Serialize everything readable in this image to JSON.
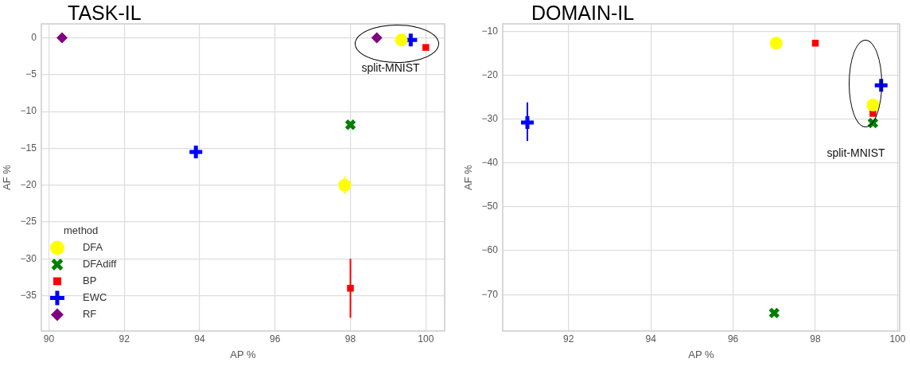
{
  "chart_data": [
    {
      "type": "scatter",
      "title": "TASK-IL",
      "xlabel": "AP %",
      "ylabel": "AF %",
      "legend_title": "method",
      "legend": "bottom left",
      "grid": true,
      "xlim": [
        89.8,
        100.5
      ],
      "xticks": [
        90,
        92,
        94,
        96,
        98,
        100
      ],
      "ylim": [
        -39.8,
        1.9
      ],
      "yticks": [
        0,
        -5,
        -10,
        -15,
        -20,
        -25,
        -30,
        -35
      ],
      "annotations": [
        "split-MNIST"
      ],
      "series": [
        {
          "name": "DFA",
          "color": "#ffff00",
          "marker": "circle",
          "x": [
            97.85,
            99.35
          ],
          "values": [
            -20,
            -0.3
          ],
          "errors": [
            1.2,
            null
          ]
        },
        {
          "name": "DFAdiff",
          "color": "#008000",
          "marker": "cross",
          "x": [
            98
          ],
          "values": [
            -11.8
          ]
        },
        {
          "name": "BP",
          "color": "#ff0000",
          "marker": "square",
          "x": [
            98,
            100
          ],
          "values": [
            -34,
            -1.3
          ],
          "errors": [
            [
              -38,
              -30
            ],
            null
          ]
        },
        {
          "name": "EWC",
          "color": "#0000ff",
          "marker": "plus",
          "x": [
            93.9,
            99.6
          ],
          "values": [
            -15.5,
            -0.3
          ]
        },
        {
          "name": "RF",
          "color": "#800080",
          "marker": "diamond",
          "x": [
            90.35,
            98.7
          ],
          "values": [
            0,
            0
          ]
        }
      ]
    },
    {
      "type": "scatter",
      "title": "DOMAIN-IL",
      "xlabel": "AP %",
      "ylabel": "AF %",
      "grid": true,
      "xlim": [
        90.4,
        100.05
      ],
      "xticks": [
        92,
        94,
        96,
        98,
        100
      ],
      "ylim": [
        -78.3,
        -8.3
      ],
      "yticks": [
        -10,
        -20,
        -30,
        -40,
        -50,
        -60,
        -70
      ],
      "annotations": [
        "split-MNIST"
      ],
      "series": [
        {
          "color": "#ffff00",
          "marker": "circle",
          "x": [
            97.05,
            99.4
          ],
          "values": [
            -12.7,
            -26.8
          ]
        },
        {
          "color": "#008000",
          "marker": "cross",
          "x": [
            97,
            99.4
          ],
          "values": [
            -74.2,
            -30.9
          ]
        },
        {
          "color": "#ff0000",
          "marker": "square",
          "x": [
            98,
            99.4
          ],
          "values": [
            -12.7,
            -28.7
          ]
        },
        {
          "color": "#0000ff",
          "marker": "plus",
          "x": [
            91,
            99.6
          ],
          "values": [
            -30.8,
            -22.3
          ],
          "errors": [
            [
              -35,
              -26.2
            ],
            null
          ]
        }
      ]
    }
  ]
}
